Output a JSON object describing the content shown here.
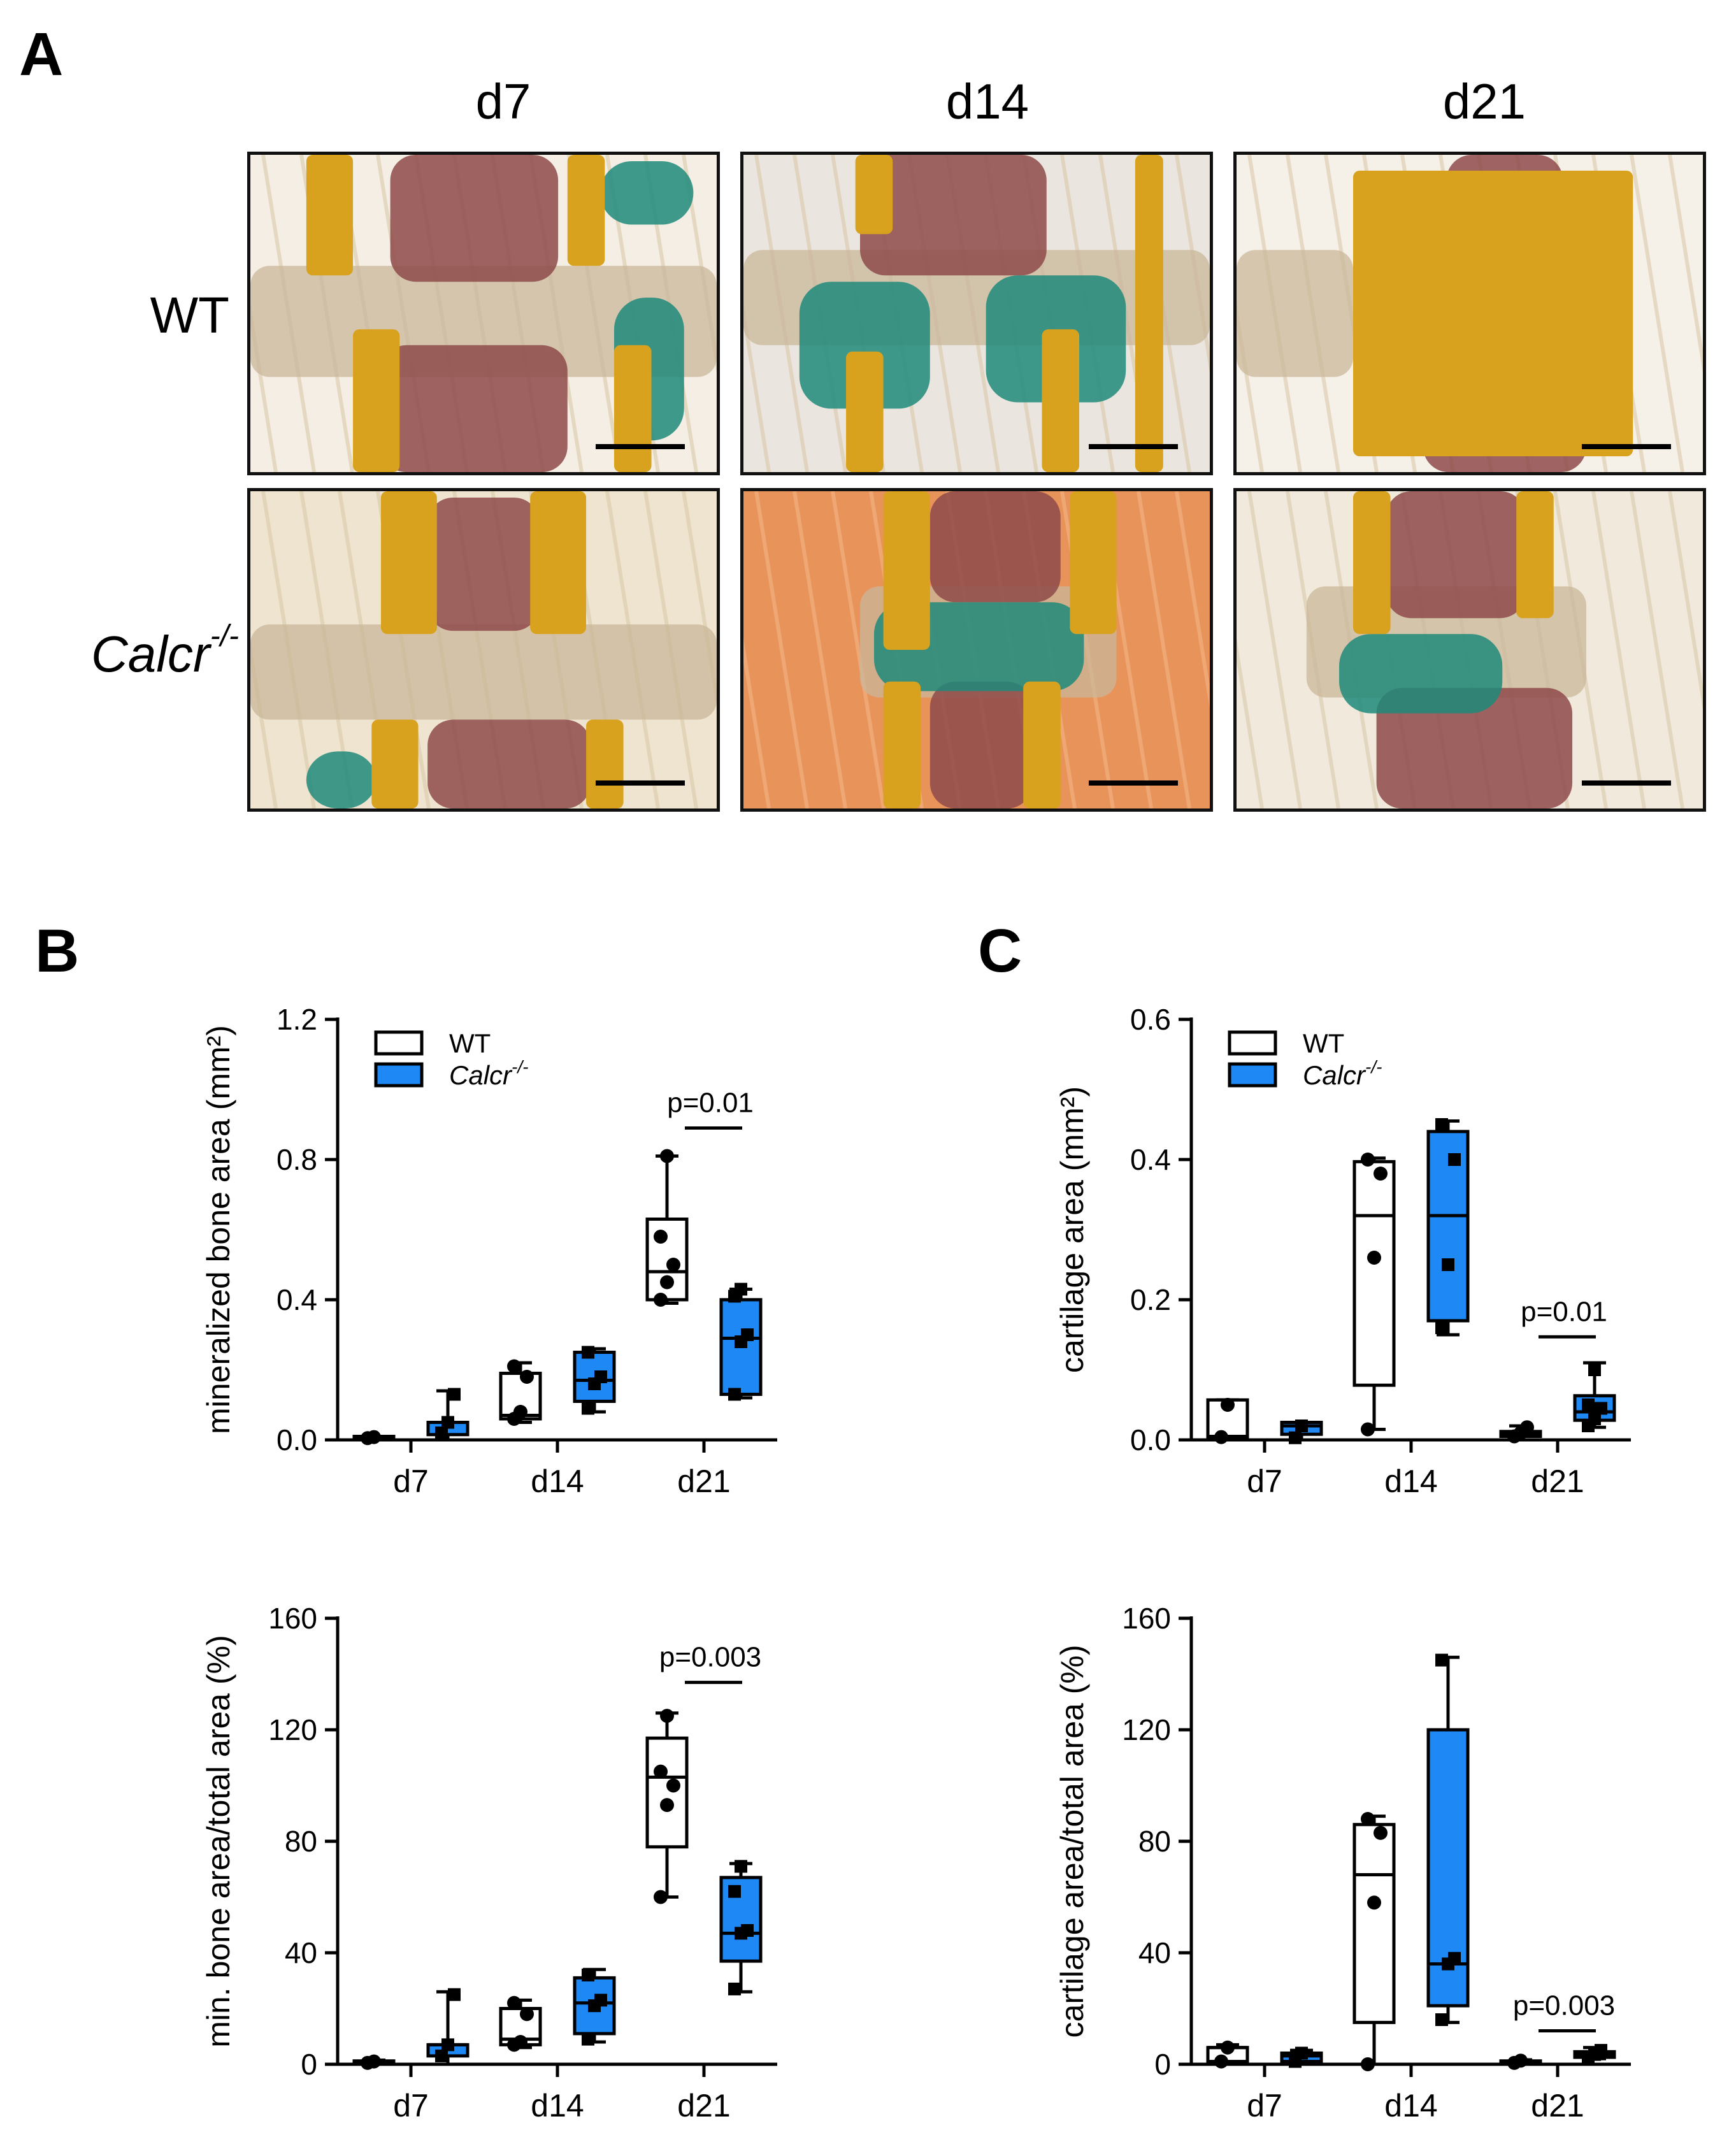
{
  "figure": {
    "panel_letters": {
      "A": "A",
      "B": "B",
      "C": "C"
    },
    "timepoints": [
      "d7",
      "d14",
      "d21"
    ],
    "rows": [
      {
        "label": "WT",
        "italic": false,
        "sup": ""
      },
      {
        "label": "Calcr",
        "italic": true,
        "sup": "-/-"
      }
    ],
    "stain_colors": {
      "bone": "#d9a21e",
      "marrow": "#8e4a4a",
      "cartilage": "#1f8a7a",
      "tissue": "#c9b79a",
      "muscle": "#e8935a",
      "background": "#f4eee4",
      "scale_bar": "#000000"
    }
  },
  "legend": {
    "wt_label": "WT",
    "ko_label": "Calcr",
    "ko_sup": "-/-",
    "wt_color": "#ffffff",
    "ko_color": "#1e88f5"
  },
  "chart_data": [
    {
      "id": "B-top",
      "type": "box",
      "ylabel": "mineralized bone area (mm²)",
      "ylim": [
        0,
        1.2
      ],
      "yticks": [
        "0.0",
        "0.4",
        "0.8",
        "1.2"
      ],
      "yticks_values": [
        0,
        0.4,
        0.8,
        1.2
      ],
      "categories": [
        "d7",
        "d14",
        "d21"
      ],
      "legend": true,
      "series": [
        {
          "name": "WT",
          "boxes": [
            {
              "min": 0.0,
              "q1": 0.003,
              "median": 0.006,
              "q3": 0.01,
              "max": 0.01,
              "points": [
                0.005,
                0.008
              ]
            },
            {
              "min": 0.05,
              "q1": 0.06,
              "median": 0.07,
              "q3": 0.19,
              "max": 0.22,
              "points": [
                0.06,
                0.08,
                0.18,
                0.21
              ]
            },
            {
              "min": 0.39,
              "q1": 0.4,
              "median": 0.48,
              "q3": 0.63,
              "max": 0.81,
              "points": [
                0.4,
                0.45,
                0.5,
                0.58,
                0.81
              ]
            }
          ]
        },
        {
          "name": "Calcr",
          "boxes": [
            {
              "min": 0.0,
              "q1": 0.015,
              "median": 0.05,
              "q3": 0.05,
              "max": 0.14,
              "points": [
                0.02,
                0.05,
                0.13
              ]
            },
            {
              "min": 0.08,
              "q1": 0.11,
              "median": 0.17,
              "q3": 0.25,
              "max": 0.26,
              "points": [
                0.09,
                0.16,
                0.18,
                0.25
              ]
            },
            {
              "min": 0.12,
              "q1": 0.13,
              "median": 0.29,
              "q3": 0.4,
              "max": 0.43,
              "points": [
                0.13,
                0.28,
                0.3,
                0.41,
                0.43
              ]
            }
          ]
        }
      ],
      "annotations": [
        {
          "text": "p=0.01",
          "category": "d21",
          "y": 0.89
        }
      ]
    },
    {
      "id": "B-bottom",
      "type": "box",
      "ylabel": "min. bone area/total area (%)",
      "ylim": [
        0,
        160
      ],
      "yticks": [
        "0",
        "40",
        "80",
        "120",
        "160"
      ],
      "yticks_values": [
        0,
        40,
        80,
        120,
        160
      ],
      "categories": [
        "d7",
        "d14",
        "d21"
      ],
      "legend": false,
      "series": [
        {
          "name": "WT",
          "boxes": [
            {
              "min": 0.0,
              "q1": 0.3,
              "median": 0.8,
              "q3": 1.2,
              "max": 1.5,
              "points": [
                0.5,
                1.0
              ]
            },
            {
              "min": 6,
              "q1": 7,
              "median": 9,
              "q3": 20,
              "max": 23,
              "points": [
                7,
                8,
                18,
                22
              ]
            },
            {
              "min": 60,
              "q1": 78,
              "median": 103,
              "q3": 117,
              "max": 126,
              "points": [
                60,
                93,
                100,
                105,
                125
              ]
            }
          ]
        },
        {
          "name": "Calcr",
          "boxes": [
            {
              "min": 0.0,
              "q1": 3,
              "median": 7,
              "q3": 7,
              "max": 26,
              "points": [
                3,
                7,
                25
              ]
            },
            {
              "min": 8,
              "q1": 11,
              "median": 22,
              "q3": 31,
              "max": 34,
              "points": [
                9,
                21,
                23,
                32
              ]
            },
            {
              "min": 26,
              "q1": 37,
              "median": 47,
              "q3": 67,
              "max": 72,
              "points": [
                27,
                47,
                48,
                62,
                71
              ]
            }
          ]
        }
      ],
      "annotations": [
        {
          "text": "p=0.003",
          "category": "d21",
          "y": 137
        }
      ]
    },
    {
      "id": "C-top",
      "type": "box",
      "ylabel": "cartilage area (mm²)",
      "ylim": [
        0,
        0.6
      ],
      "yticks": [
        "0.0",
        "0.2",
        "0.4",
        "0.6"
      ],
      "yticks_values": [
        0,
        0.2,
        0.4,
        0.6
      ],
      "categories": [
        "d7",
        "d14",
        "d21"
      ],
      "legend": true,
      "series": [
        {
          "name": "WT",
          "boxes": [
            {
              "min": 0.0,
              "q1": 0.003,
              "median": 0.005,
              "q3": 0.057,
              "max": 0.057,
              "points": [
                0.004,
                0.05
              ]
            },
            {
              "min": 0.015,
              "q1": 0.078,
              "median": 0.32,
              "q3": 0.397,
              "max": 0.402,
              "points": [
                0.015,
                0.26,
                0.38,
                0.4
              ]
            },
            {
              "min": 0.0,
              "q1": 0.005,
              "median": 0.008,
              "q3": 0.012,
              "max": 0.02,
              "points": [
                0.005,
                0.01,
                0.018
              ]
            }
          ]
        },
        {
          "name": "Calcr",
          "boxes": [
            {
              "min": 0.0,
              "q1": 0.008,
              "median": 0.02,
              "q3": 0.025,
              "max": 0.025,
              "points": [
                0.003,
                0.02
              ]
            },
            {
              "min": 0.15,
              "q1": 0.17,
              "median": 0.32,
              "q3": 0.44,
              "max": 0.455,
              "points": [
                0.16,
                0.25,
                0.4,
                0.45
              ]
            },
            {
              "min": 0.018,
              "q1": 0.028,
              "median": 0.04,
              "q3": 0.063,
              "max": 0.11,
              "points": [
                0.02,
                0.03,
                0.045,
                0.05,
                0.1
              ]
            }
          ]
        }
      ],
      "annotations": [
        {
          "text": "p=0.01",
          "category": "d21",
          "y": 0.147
        }
      ]
    },
    {
      "id": "C-bottom",
      "type": "box",
      "ylabel": "cartilage area/total area (%)",
      "ylim": [
        0,
        160
      ],
      "yticks": [
        "0",
        "40",
        "80",
        "120",
        "160"
      ],
      "yticks_values": [
        0,
        40,
        80,
        120,
        160
      ],
      "categories": [
        "d7",
        "d14",
        "d21"
      ],
      "legend": false,
      "series": [
        {
          "name": "WT",
          "boxes": [
            {
              "min": 0.0,
              "q1": 1,
              "median": 6,
              "q3": 6,
              "max": 7,
              "points": [
                1,
                6
              ]
            },
            {
              "min": 0,
              "q1": 15,
              "median": 68,
              "q3": 86,
              "max": 89,
              "points": [
                0,
                58,
                83,
                88
              ]
            },
            {
              "min": 0,
              "q1": 0.4,
              "median": 0.8,
              "q3": 1.2,
              "max": 1.6,
              "points": [
                0.5,
                1.3
              ]
            }
          ]
        },
        {
          "name": "Calcr",
          "boxes": [
            {
              "min": 0.0,
              "q1": 1,
              "median": 3,
              "q3": 4,
              "max": 5,
              "points": [
                1,
                4
              ]
            },
            {
              "min": 15,
              "q1": 21,
              "median": 36,
              "q3": 120,
              "max": 146,
              "points": [
                16,
                36,
                38,
                145
              ]
            },
            {
              "min": 2,
              "q1": 2.5,
              "median": 3.5,
              "q3": 4.5,
              "max": 6,
              "points": [
                2.5,
                3.5,
                5
              ]
            }
          ]
        }
      ],
      "annotations": [
        {
          "text": "p=0.003",
          "category": "d21",
          "y": 12
        }
      ]
    }
  ]
}
